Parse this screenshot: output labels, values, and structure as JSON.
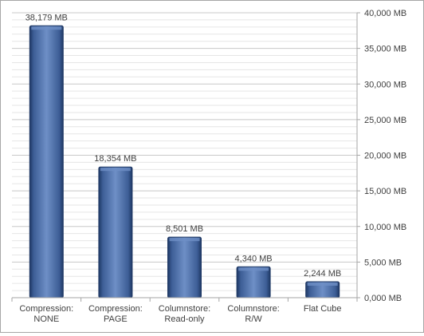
{
  "chart_data": {
    "type": "bar",
    "categories": [
      [
        "Compression:",
        "NONE"
      ],
      [
        "Compression:",
        "PAGE"
      ],
      [
        "Columnstore:",
        "Read-only"
      ],
      [
        "Columnstore:",
        "R/W"
      ],
      [
        "Flat Cube"
      ]
    ],
    "values": [
      38179,
      18354,
      8501,
      4340,
      2244
    ],
    "data_labels": [
      "38,179 MB",
      "18,354 MB",
      "8,501 MB",
      "4,340 MB",
      "2,244 MB"
    ],
    "y_ticks": [
      0,
      5000,
      10000,
      15000,
      20000,
      25000,
      30000,
      35000,
      40000
    ],
    "y_tick_labels": [
      "0,000 MB",
      "5,000 MB",
      "10,000 MB",
      "15,000 MB",
      "20,000 MB",
      "25,000 MB",
      "30,000 MB",
      "35,000 MB",
      "40,000 MB"
    ],
    "ylim": [
      0,
      40000
    ],
    "y_axis_position": "right",
    "grid": true,
    "legend": "none",
    "title": "",
    "xlabel": "",
    "ylabel": "",
    "colors": {
      "bar_fill": "#3d5e96",
      "bar_highlight": "#6e8fc6",
      "bar_edge": "#1f3864",
      "grid": "#d9d9d9",
      "axis": "#a6a6a6",
      "text": "#404040"
    }
  }
}
